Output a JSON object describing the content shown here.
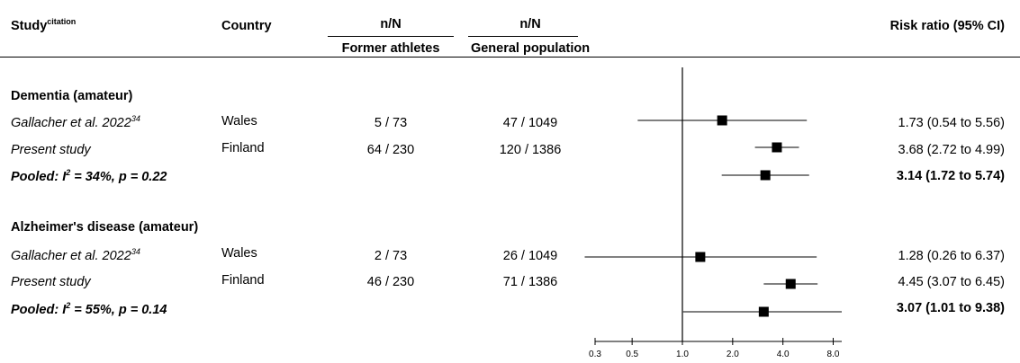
{
  "header": {
    "study": "Study",
    "study_sup": "citation",
    "country": "Country",
    "col_a_top": "n/N",
    "col_a_bottom": "Former athletes",
    "col_b_top": "n/N",
    "col_b_bottom": "General population",
    "risk": "Risk ratio (95% CI)"
  },
  "groups": [
    {
      "title": "Dementia (amateur)",
      "rows": [
        {
          "study": "Gallacher et al. 2022",
          "sup": "34",
          "country": "Wales",
          "a": "5 / 73",
          "b": "47 / 1049",
          "rr": "1.73 (0.54 to 5.56)"
        },
        {
          "study": "Present study",
          "sup": "",
          "country": "Finland",
          "a": "64 / 230",
          "b": "120 / 1386",
          "rr": "3.68 (2.72 to 4.99)"
        }
      ],
      "pooled": {
        "label_pre": "Pooled: I",
        "label_sup": "2",
        "label_post": " = 34%, p = 0.22",
        "rr": "3.14 (1.72 to 5.74)"
      }
    },
    {
      "title": "Alzheimer's disease (amateur)",
      "rows": [
        {
          "study": "Gallacher et al. 2022",
          "sup": "34",
          "country": "Wales",
          "a": "2 / 73",
          "b": "26 / 1049",
          "rr": "1.28 (0.26 to 6.37)"
        },
        {
          "study": "Present study",
          "sup": "",
          "country": "Finland",
          "a": "46 / 230",
          "b": "71 / 1386",
          "rr": "4.45 (3.07 to 6.45)"
        }
      ],
      "pooled": {
        "label_pre": "Pooled: I",
        "label_sup": "2",
        "label_post": " = 55%, p = 0.14",
        "rr": "3.07 (1.01 to 9.38)"
      }
    }
  ],
  "chart_data": {
    "type": "forest",
    "scale": "log",
    "xlim": [
      0.3,
      9.0
    ],
    "reference_line": 1.0,
    "ticks": [
      0.3,
      0.5,
      1.0,
      2.0,
      4.0,
      8.0
    ],
    "tick_labels": [
      "0.3",
      "0.5",
      "1.0",
      "2.0",
      "4.0",
      "8.0"
    ],
    "estimates": [
      {
        "label": "Gallacher et al. 2022 (Dementia)",
        "est": 1.73,
        "lo": 0.54,
        "hi": 5.56
      },
      {
        "label": "Present study (Dementia)",
        "est": 3.68,
        "lo": 2.72,
        "hi": 4.99
      },
      {
        "label": "Pooled (Dementia)",
        "est": 3.14,
        "lo": 1.72,
        "hi": 5.74
      },
      {
        "label": "Gallacher et al. 2022 (Alzheimer's)",
        "est": 1.28,
        "lo": 0.26,
        "hi": 6.37
      },
      {
        "label": "Present study (Alzheimer's)",
        "est": 4.45,
        "lo": 3.07,
        "hi": 6.45
      },
      {
        "label": "Pooled (Alzheimer's)",
        "est": 3.07,
        "lo": 1.01,
        "hi": 9.38
      }
    ]
  }
}
